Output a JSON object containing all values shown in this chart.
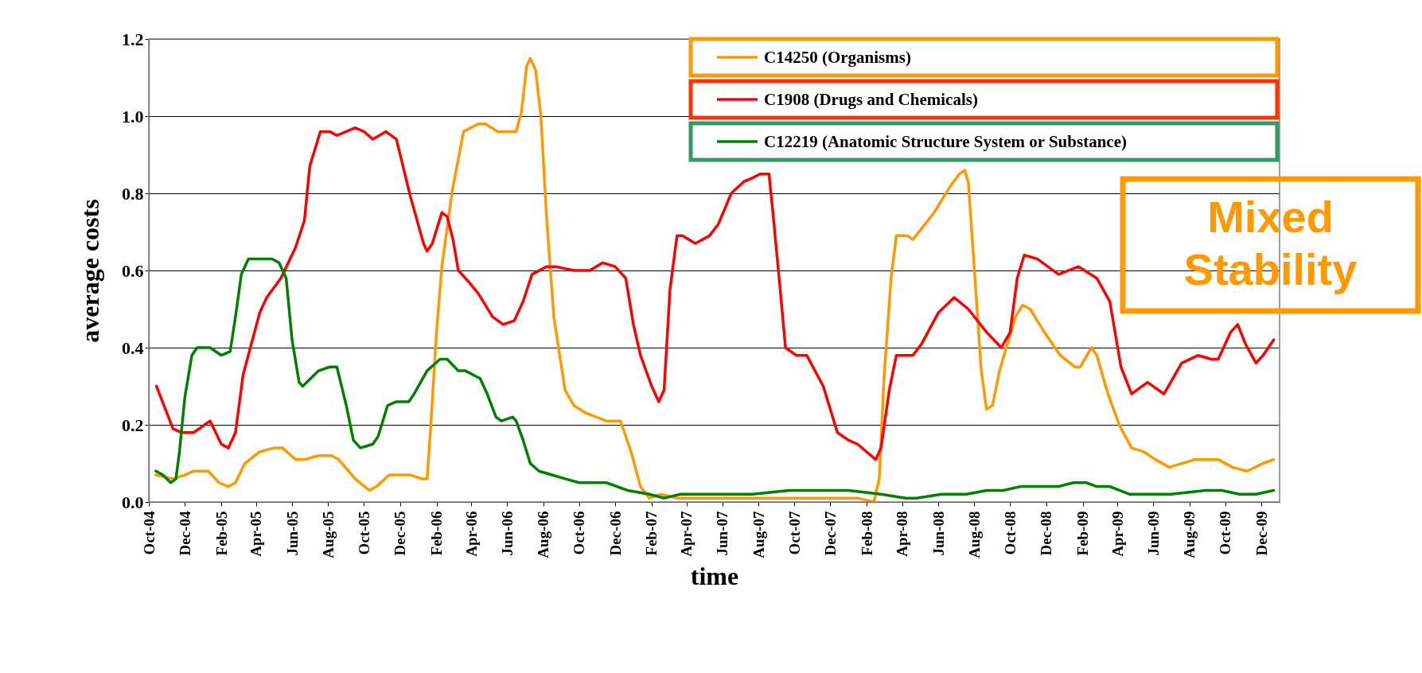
{
  "chart_data": {
    "type": "line",
    "xlabel": "time",
    "ylabel": "average costs",
    "xlim": [
      "2004-10-01",
      "2010-01-01"
    ],
    "ylim": [
      0,
      1.2
    ],
    "xticks": [
      {
        "value": "2004-10-01",
        "label": "Oct-04"
      },
      {
        "value": "2004-12-01",
        "label": "Dec-04"
      },
      {
        "value": "2005-02-01",
        "label": "Feb-05"
      },
      {
        "value": "2005-04-01",
        "label": "Apr-05"
      },
      {
        "value": "2005-06-01",
        "label": "Jun-05"
      },
      {
        "value": "2005-08-01",
        "label": "Aug-05"
      },
      {
        "value": "2005-10-01",
        "label": "Oct-05"
      },
      {
        "value": "2005-12-01",
        "label": "Dec-05"
      },
      {
        "value": "2006-02-01",
        "label": "Feb-06"
      },
      {
        "value": "2006-04-01",
        "label": "Apr-06"
      },
      {
        "value": "2006-06-01",
        "label": "Jun-06"
      },
      {
        "value": "2006-08-01",
        "label": "Aug-06"
      },
      {
        "value": "2006-10-01",
        "label": "Oct-06"
      },
      {
        "value": "2006-12-01",
        "label": "Dec-06"
      },
      {
        "value": "2007-02-01",
        "label": "Feb-07"
      },
      {
        "value": "2007-04-01",
        "label": "Apr-07"
      },
      {
        "value": "2007-06-01",
        "label": "Jun-07"
      },
      {
        "value": "2007-08-01",
        "label": "Aug-07"
      },
      {
        "value": "2007-10-01",
        "label": "Oct-07"
      },
      {
        "value": "2007-12-01",
        "label": "Dec-07"
      },
      {
        "value": "2008-02-01",
        "label": "Feb-08"
      },
      {
        "value": "2008-04-01",
        "label": "Apr-08"
      },
      {
        "value": "2008-06-01",
        "label": "Jun-08"
      },
      {
        "value": "2008-08-01",
        "label": "Aug-08"
      },
      {
        "value": "2008-10-01",
        "label": "Oct-08"
      },
      {
        "value": "2008-12-01",
        "label": "Dec-08"
      },
      {
        "value": "2009-02-01",
        "label": "Feb-09"
      },
      {
        "value": "2009-04-01",
        "label": "Apr-09"
      },
      {
        "value": "2009-06-01",
        "label": "Jun-09"
      },
      {
        "value": "2009-08-01",
        "label": "Aug-09"
      },
      {
        "value": "2009-10-01",
        "label": "Oct-09"
      },
      {
        "value": "2009-12-01",
        "label": "Dec-09"
      }
    ],
    "yticks": [
      {
        "value": 0,
        "label": "0.0"
      },
      {
        "value": 0.2,
        "label": "0.2"
      },
      {
        "value": 0.4,
        "label": "0.4"
      },
      {
        "value": 0.6,
        "label": "0.6"
      },
      {
        "value": 0.8,
        "label": "0.8"
      },
      {
        "value": 1,
        "label": "1.0"
      },
      {
        "value": 1.2,
        "label": "1.2"
      }
    ],
    "grid": "y",
    "legend": "top right",
    "annotations": [
      "Mixed Stability"
    ],
    "series": [
      {
        "name": "C14250 (Organisms)",
        "color": "#ff9900",
        "x": [
          "2004-10-13",
          "2004-11-10",
          "2004-12-01",
          "2004-12-16",
          "2005-01-10",
          "2005-01-28",
          "2005-02-13",
          "2005-02-25",
          "2005-03-13",
          "2005-04-07",
          "2005-05-01",
          "2005-05-16",
          "2005-06-07",
          "2005-06-22",
          "2005-07-16",
          "2005-08-07",
          "2005-08-19",
          "2005-09-16",
          "2005-10-10",
          "2005-10-22",
          "2005-11-13",
          "2005-12-04",
          "2005-12-19",
          "2006-01-07",
          "2006-01-16",
          "2006-01-22",
          "2006-02-01",
          "2006-02-10",
          "2006-02-28",
          "2006-03-19",
          "2006-04-13",
          "2006-04-25",
          "2006-05-16",
          "2006-06-16",
          "2006-06-25",
          "2006-07-04",
          "2006-07-10",
          "2006-07-19",
          "2006-07-28",
          "2006-08-07",
          "2006-08-19",
          "2006-09-07",
          "2006-09-22",
          "2006-10-13",
          "2006-11-16",
          "2006-12-10",
          "2006-12-28",
          "2007-01-13",
          "2007-01-28",
          "2007-02-16",
          "2007-03-16",
          "2007-05-25",
          "2007-10-10",
          "2008-01-16",
          "2008-02-13",
          "2008-02-22",
          "2008-03-01",
          "2008-03-13",
          "2008-03-22",
          "2008-04-10",
          "2008-04-19",
          "2008-05-25",
          "2008-06-22",
          "2008-07-07",
          "2008-07-16",
          "2008-07-22",
          "2008-08-01",
          "2008-08-13",
          "2008-08-22",
          "2008-09-01",
          "2008-09-13",
          "2008-10-10",
          "2008-10-22",
          "2008-11-04",
          "2008-11-28",
          "2008-12-25",
          "2009-01-19",
          "2009-01-28",
          "2009-02-16",
          "2009-02-25",
          "2009-03-16",
          "2009-04-04",
          "2009-04-25",
          "2009-05-16",
          "2009-06-04",
          "2009-06-28",
          "2009-08-10",
          "2009-09-19",
          "2009-10-13",
          "2009-11-07",
          "2009-12-04",
          "2009-12-22"
        ],
        "values": [
          0.07,
          0.06,
          0.07,
          0.08,
          0.08,
          0.05,
          0.04,
          0.05,
          0.1,
          0.13,
          0.14,
          0.14,
          0.11,
          0.11,
          0.12,
          0.12,
          0.11,
          0.06,
          0.03,
          0.04,
          0.07,
          0.07,
          0.07,
          0.06,
          0.06,
          0.19,
          0.44,
          0.61,
          0.81,
          0.96,
          0.98,
          0.98,
          0.96,
          0.96,
          1.01,
          1.13,
          1.15,
          1.12,
          1.0,
          0.73,
          0.48,
          0.29,
          0.25,
          0.23,
          0.21,
          0.21,
          0.13,
          0.04,
          0.01,
          0.02,
          0.01,
          0.01,
          0.01,
          0.01,
          0.0,
          0.06,
          0.32,
          0.58,
          0.69,
          0.69,
          0.68,
          0.75,
          0.82,
          0.85,
          0.86,
          0.83,
          0.61,
          0.34,
          0.24,
          0.25,
          0.34,
          0.48,
          0.51,
          0.5,
          0.44,
          0.38,
          0.35,
          0.35,
          0.4,
          0.38,
          0.28,
          0.2,
          0.14,
          0.13,
          0.11,
          0.09,
          0.11,
          0.11,
          0.09,
          0.08,
          0.1,
          0.11
        ]
      },
      {
        "name": "C1908 (Drugs and Chemicals)",
        "color": "#ff0000",
        "x": [
          "2004-10-14",
          "2004-11-11",
          "2004-11-25",
          "2004-12-16",
          "2005-01-13",
          "2005-02-01",
          "2005-02-13",
          "2005-02-25",
          "2005-03-10",
          "2005-04-07",
          "2005-04-19",
          "2005-05-13",
          "2005-06-07",
          "2005-06-22",
          "2005-07-01",
          "2005-07-19",
          "2005-08-04",
          "2005-08-16",
          "2005-09-16",
          "2005-10-01",
          "2005-10-16",
          "2005-11-07",
          "2005-11-25",
          "2005-12-19",
          "2006-01-10",
          "2006-01-16",
          "2006-01-25",
          "2006-02-10",
          "2006-02-19",
          "2006-03-01",
          "2006-03-10",
          "2006-03-28",
          "2006-04-13",
          "2006-05-07",
          "2006-05-25",
          "2006-06-13",
          "2006-06-28",
          "2006-07-13",
          "2006-08-07",
          "2006-08-22",
          "2006-09-22",
          "2006-10-19",
          "2006-11-10",
          "2006-12-01",
          "2006-12-19",
          "2007-01-01",
          "2007-01-13",
          "2007-02-01",
          "2007-02-13",
          "2007-02-22",
          "2007-03-04",
          "2007-03-16",
          "2007-03-25",
          "2007-04-16",
          "2007-05-10",
          "2007-05-25",
          "2007-06-16",
          "2007-07-07",
          "2007-07-22",
          "2007-08-04",
          "2007-08-19",
          "2007-08-25",
          "2007-09-07",
          "2007-09-16",
          "2007-10-04",
          "2007-10-22",
          "2007-11-19",
          "2007-12-13",
          "2008-01-01",
          "2008-01-16",
          "2008-02-16",
          "2008-02-25",
          "2008-03-10",
          "2008-03-22",
          "2008-04-19",
          "2008-05-04",
          "2008-06-01",
          "2008-06-28",
          "2008-07-22",
          "2008-08-22",
          "2008-09-16",
          "2008-10-01",
          "2008-10-13",
          "2008-10-25",
          "2008-11-16",
          "2008-12-22",
          "2009-01-25",
          "2009-02-25",
          "2009-03-19",
          "2009-04-07",
          "2009-04-25",
          "2009-05-22",
          "2009-06-19",
          "2009-07-19",
          "2009-08-16",
          "2009-09-07",
          "2009-09-19",
          "2009-10-10",
          "2009-10-22",
          "2009-11-04",
          "2009-11-22",
          "2009-12-04",
          "2009-12-22"
        ],
        "values": [
          0.3,
          0.19,
          0.18,
          0.18,
          0.21,
          0.15,
          0.14,
          0.18,
          0.33,
          0.49,
          0.53,
          0.58,
          0.66,
          0.73,
          0.87,
          0.96,
          0.96,
          0.95,
          0.97,
          0.96,
          0.94,
          0.96,
          0.94,
          0.79,
          0.67,
          0.65,
          0.67,
          0.75,
          0.74,
          0.68,
          0.6,
          0.57,
          0.54,
          0.48,
          0.46,
          0.47,
          0.52,
          0.59,
          0.61,
          0.61,
          0.6,
          0.6,
          0.62,
          0.61,
          0.58,
          0.46,
          0.38,
          0.3,
          0.26,
          0.29,
          0.55,
          0.69,
          0.69,
          0.67,
          0.69,
          0.72,
          0.8,
          0.83,
          0.84,
          0.85,
          0.85,
          0.76,
          0.55,
          0.4,
          0.38,
          0.38,
          0.3,
          0.18,
          0.16,
          0.15,
          0.11,
          0.14,
          0.29,
          0.38,
          0.38,
          0.41,
          0.49,
          0.53,
          0.5,
          0.44,
          0.4,
          0.44,
          0.58,
          0.64,
          0.63,
          0.59,
          0.61,
          0.58,
          0.52,
          0.35,
          0.28,
          0.31,
          0.28,
          0.36,
          0.38,
          0.37,
          0.37,
          0.44,
          0.46,
          0.41,
          0.36,
          0.38,
          0.42
        ]
      },
      {
        "name": "C12219 (Anatomic Structure System or Substance)",
        "color": "#008000",
        "x": [
          "2004-10-13",
          "2004-10-25",
          "2004-11-07",
          "2004-11-16",
          "2004-11-22",
          "2004-12-01",
          "2004-12-13",
          "2004-12-22",
          "2005-01-13",
          "2005-02-01",
          "2005-02-16",
          "2005-02-25",
          "2005-03-07",
          "2005-03-19",
          "2005-04-28",
          "2005-05-10",
          "2005-05-22",
          "2005-06-01",
          "2005-06-13",
          "2005-06-19",
          "2005-07-16",
          "2005-08-04",
          "2005-08-16",
          "2005-09-01",
          "2005-09-13",
          "2005-09-25",
          "2005-10-16",
          "2005-10-25",
          "2005-11-10",
          "2005-11-25",
          "2005-12-16",
          "2005-12-25",
          "2006-01-16",
          "2006-02-07",
          "2006-02-19",
          "2006-03-10",
          "2006-03-22",
          "2006-04-16",
          "2006-04-28",
          "2006-05-13",
          "2006-05-22",
          "2006-06-10",
          "2006-06-16",
          "2006-06-28",
          "2006-07-10",
          "2006-07-25",
          "2006-08-16",
          "2006-09-07",
          "2006-10-01",
          "2006-11-16",
          "2006-12-22",
          "2007-01-28",
          "2007-02-22",
          "2007-03-22",
          "2007-07-22",
          "2007-09-22",
          "2007-10-22",
          "2008-01-01",
          "2008-02-25",
          "2008-04-07",
          "2008-04-25",
          "2008-06-07",
          "2008-07-19",
          "2008-08-22",
          "2008-09-19",
          "2008-10-19",
          "2008-12-22",
          "2009-01-16",
          "2009-02-07",
          "2009-02-25",
          "2009-03-19",
          "2009-04-22",
          "2009-06-07",
          "2009-07-01",
          "2009-08-28",
          "2009-09-25",
          "2009-10-25",
          "2009-11-22",
          "2009-12-22"
        ],
        "values": [
          0.08,
          0.07,
          0.05,
          0.06,
          0.13,
          0.27,
          0.38,
          0.4,
          0.4,
          0.38,
          0.39,
          0.48,
          0.59,
          0.63,
          0.63,
          0.62,
          0.58,
          0.42,
          0.31,
          0.3,
          0.34,
          0.35,
          0.35,
          0.25,
          0.16,
          0.14,
          0.15,
          0.17,
          0.25,
          0.26,
          0.26,
          0.28,
          0.34,
          0.37,
          0.37,
          0.34,
          0.34,
          0.32,
          0.28,
          0.22,
          0.21,
          0.22,
          0.21,
          0.16,
          0.1,
          0.08,
          0.07,
          0.06,
          0.05,
          0.05,
          0.03,
          0.02,
          0.01,
          0.02,
          0.02,
          0.03,
          0.03,
          0.03,
          0.02,
          0.01,
          0.01,
          0.02,
          0.02,
          0.03,
          0.03,
          0.04,
          0.04,
          0.05,
          0.05,
          0.04,
          0.04,
          0.02,
          0.02,
          0.02,
          0.03,
          0.03,
          0.02,
          0.02,
          0.03
        ]
      }
    ]
  }
}
